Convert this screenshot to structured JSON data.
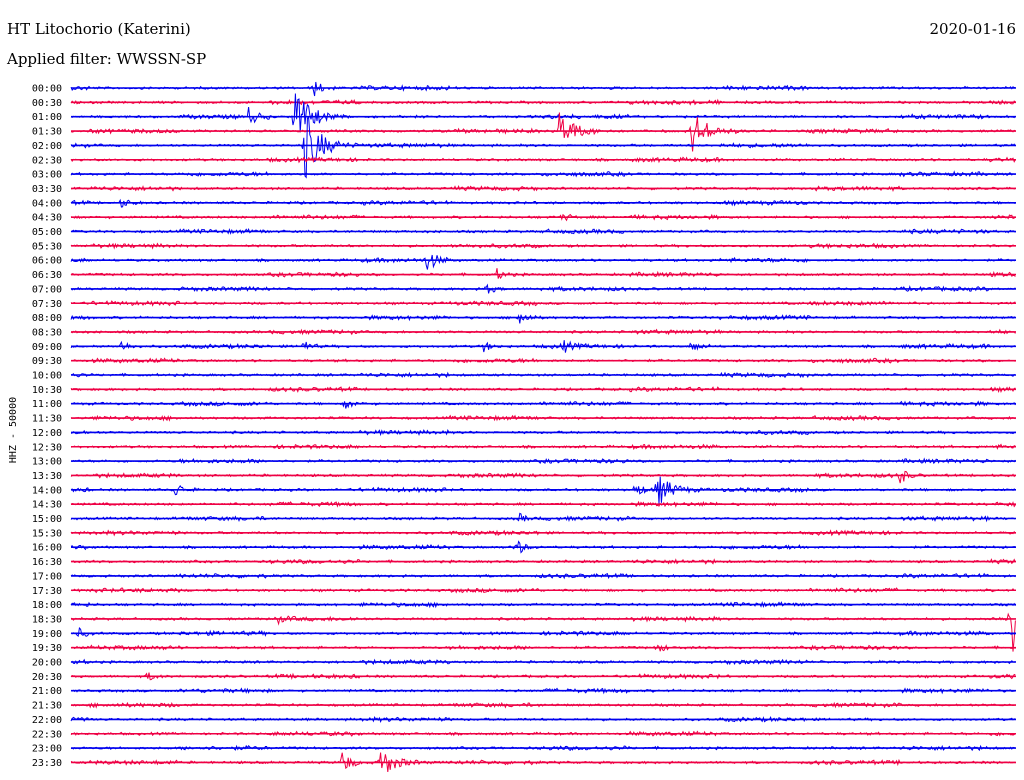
{
  "header": {
    "station": "HT Litochorio (Katerini)",
    "filter": "Applied filter: WWSSN-SP",
    "date": "2020-01-16"
  },
  "chart_data": {
    "type": "line",
    "title": "HT Litochorio (Katerini)",
    "subtitle": "Applied filter: WWSSN-SP",
    "ylabel": "HHZ - 50000",
    "xlabel": "",
    "colors": {
      "even": "#0000ee",
      "odd": "#ee0044"
    },
    "grid": false,
    "x_unit": "minutes",
    "x_range": [
      0,
      30
    ],
    "categories": [
      "00:00",
      "00:30",
      "01:00",
      "01:30",
      "02:00",
      "02:30",
      "03:00",
      "03:30",
      "04:00",
      "04:30",
      "05:00",
      "05:30",
      "06:00",
      "06:30",
      "07:00",
      "07:30",
      "08:00",
      "08:30",
      "09:00",
      "09:30",
      "10:00",
      "10:30",
      "11:00",
      "11:30",
      "12:00",
      "12:30",
      "13:00",
      "13:30",
      "14:00",
      "14:30",
      "15:00",
      "15:30",
      "16:00",
      "16:30",
      "17:00",
      "17:30",
      "18:00",
      "18:30",
      "19:00",
      "19:30",
      "20:00",
      "20:30",
      "21:00",
      "21:30",
      "22:00",
      "22:30",
      "23:00",
      "23:30"
    ],
    "events": [
      {
        "row": "00:00",
        "minute": 7.7,
        "amplitude": 9
      },
      {
        "row": "01:00",
        "minute": 5.6,
        "amplitude": 10
      },
      {
        "row": "01:00",
        "minute": 7.1,
        "amplitude": 30
      },
      {
        "row": "01:30",
        "minute": 15.5,
        "amplitude": 20
      },
      {
        "row": "01:30",
        "minute": 19.7,
        "amplitude": 22
      },
      {
        "row": "02:00",
        "minute": 7.4,
        "amplitude": 38
      },
      {
        "row": "04:00",
        "minute": 1.6,
        "amplitude": 5
      },
      {
        "row": "04:30",
        "minute": 15.6,
        "amplitude": 4
      },
      {
        "row": "06:00",
        "minute": 11.3,
        "amplitude": 12
      },
      {
        "row": "06:30",
        "minute": 13.5,
        "amplitude": 6
      },
      {
        "row": "07:00",
        "minute": 13.2,
        "amplitude": 5
      },
      {
        "row": "08:00",
        "minute": 14.2,
        "amplitude": 10
      },
      {
        "row": "09:00",
        "minute": 1.6,
        "amplitude": 6
      },
      {
        "row": "09:00",
        "minute": 7.3,
        "amplitude": 8
      },
      {
        "row": "09:00",
        "minute": 13.1,
        "amplitude": 5
      },
      {
        "row": "09:00",
        "minute": 15.6,
        "amplitude": 6
      },
      {
        "row": "09:00",
        "minute": 19.7,
        "amplitude": 7
      },
      {
        "row": "11:00",
        "minute": 8.7,
        "amplitude": 5
      },
      {
        "row": "13:30",
        "minute": 26.3,
        "amplitude": 9
      },
      {
        "row": "14:00",
        "minute": 3.3,
        "amplitude": 8
      },
      {
        "row": "14:00",
        "minute": 17.9,
        "amplitude": 9
      },
      {
        "row": "14:00",
        "minute": 18.6,
        "amplitude": 16
      },
      {
        "row": "15:00",
        "minute": 14.2,
        "amplitude": 5
      },
      {
        "row": "16:00",
        "minute": 14.1,
        "amplitude": 10
      },
      {
        "row": "18:30",
        "minute": 29.8,
        "amplitude": 40
      },
      {
        "row": "18:30",
        "minute": 6.5,
        "amplitude": 4
      },
      {
        "row": "19:00",
        "minute": 0.2,
        "amplitude": 6
      },
      {
        "row": "19:30",
        "minute": 18.6,
        "amplitude": 5
      },
      {
        "row": "20:30",
        "minute": 2.4,
        "amplitude": 5
      },
      {
        "row": "23:30",
        "minute": 8.6,
        "amplitude": 14
      },
      {
        "row": "23:30",
        "minute": 9.8,
        "amplitude": 16
      }
    ]
  }
}
